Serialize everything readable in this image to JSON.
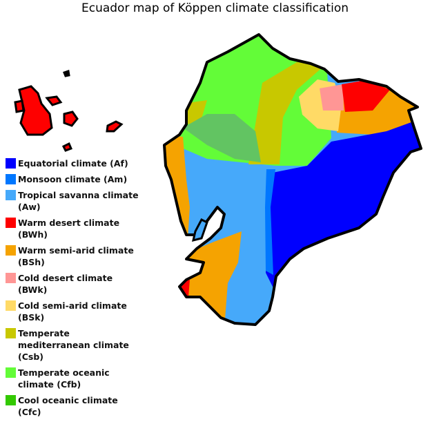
{
  "title": "Ecuador map of Köppen climate classification",
  "legend": [
    {
      "label": "Equatorial climate (Af)",
      "color": "#0000fe"
    },
    {
      "label": "Monsoon climate (Am)",
      "color": "#0077ff"
    },
    {
      "label": "Tropical savanna climate (Aw)",
      "color": "#46a9fa"
    },
    {
      "label": "Warm desert climate (BWh)",
      "color": "#fe0000"
    },
    {
      "label": "Warm semi-arid climate (BSh)",
      "color": "#f5a301"
    },
    {
      "label": "Cold desert climate (BWk)",
      "color": "#ff9695"
    },
    {
      "label": "Cold semi-arid climate (BSk)",
      "color": "#ffda66"
    },
    {
      "label": "Temperate mediterranean climate (Csb)",
      "color": "#c8c800"
    },
    {
      "label": "Temperate oceanic climate (Cfb)",
      "color": "#63fc38"
    },
    {
      "label": "Cool oceanic climate (Cfc)",
      "color": "#33c901"
    }
  ]
}
